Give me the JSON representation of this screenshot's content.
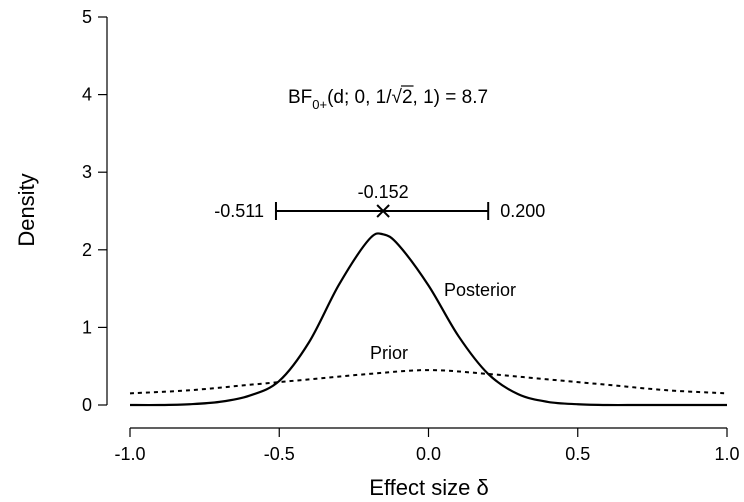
{
  "chart_data": {
    "type": "line",
    "xlabel": "Effect size δ",
    "ylabel": "Density",
    "xlim": [
      -1.0,
      1.0
    ],
    "ylim": [
      0,
      5
    ],
    "x_ticks": [
      "-1.0",
      "-0.5",
      "0.0",
      "0.5",
      "1.0"
    ],
    "x_tick_values": [
      -1.0,
      -0.5,
      0.0,
      0.5,
      1.0
    ],
    "y_ticks": [
      "0",
      "1",
      "2",
      "3",
      "4",
      "5"
    ],
    "y_tick_values": [
      0,
      1,
      2,
      3,
      4,
      5
    ],
    "grid": false,
    "bf_label": {
      "prefix": "BF",
      "subscript": "0+",
      "args_start": "(d; 0, 1/",
      "sqrt_symbol": "√",
      "sqrt_arg": "2",
      "args_end": ", 1) = 8.7"
    },
    "series": [
      {
        "name": "Posterior",
        "style": "solid",
        "x": [
          -1.0,
          -0.9,
          -0.8,
          -0.7,
          -0.6,
          -0.5,
          -0.4,
          -0.3,
          -0.2,
          -0.152,
          -0.1,
          0.0,
          0.1,
          0.2,
          0.3,
          0.4,
          0.5,
          0.6,
          0.7,
          0.8,
          0.9,
          1.0
        ],
        "y": [
          0.0,
          0.0,
          0.01,
          0.04,
          0.12,
          0.31,
          0.81,
          1.55,
          2.13,
          2.2,
          2.06,
          1.54,
          0.89,
          0.4,
          0.14,
          0.04,
          0.01,
          0.0,
          0.0,
          0.0,
          0.0,
          0.0
        ]
      },
      {
        "name": "Prior",
        "style": "dashed",
        "x": [
          -1.0,
          -0.8,
          -0.6,
          -0.4,
          -0.2,
          0.0,
          0.2,
          0.4,
          0.6,
          0.8,
          1.0
        ],
        "y": [
          0.15,
          0.19,
          0.26,
          0.33,
          0.4,
          0.45,
          0.4,
          0.33,
          0.26,
          0.19,
          0.15
        ]
      }
    ],
    "credible_interval": {
      "lower": -0.511,
      "median": -0.152,
      "upper": 0.2,
      "y": 2.5,
      "lower_label": "-0.511",
      "median_label": "-0.152",
      "upper_label": "0.200"
    },
    "annotations": [
      {
        "text": "Posterior",
        "x": 0.26,
        "y": 1.5
      },
      {
        "text": "Prior",
        "x": -0.1,
        "y": 0.62
      }
    ]
  }
}
